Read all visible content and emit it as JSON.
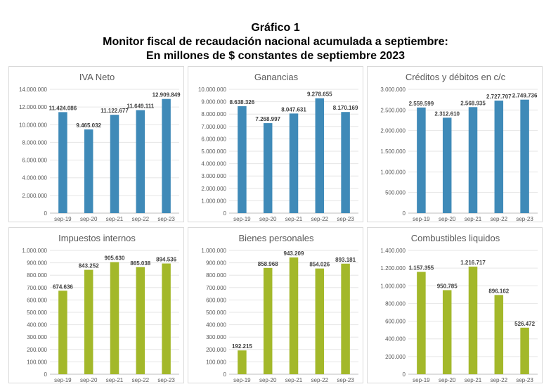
{
  "heading": {
    "line1": "Gráfico 1",
    "line2": "Monitor fiscal de recaudación nacional acumulada a septiembre:",
    "line3": "En millones de $ constantes de septiembre 2023"
  },
  "colors": {
    "blue": "#3f8ab8",
    "green": "#a3b82a"
  },
  "chart_data": [
    {
      "type": "bar",
      "title": "IVA Neto",
      "categories": [
        "sep-19",
        "sep-20",
        "sep-21",
        "sep-22",
        "sep-23"
      ],
      "values": [
        11424086,
        9465032,
        11122677,
        11649111,
        12909849
      ],
      "value_labels": [
        "11.424.086",
        "9.465.032",
        "11.122.677",
        "11.649.111",
        "12.909.849"
      ],
      "ylim": [
        0,
        14000000
      ],
      "yticks": [
        0,
        2000000,
        4000000,
        6000000,
        8000000,
        10000000,
        12000000,
        14000000
      ],
      "ytick_labels": [
        "0",
        "2.000.000",
        "4.000.000",
        "6.000.000",
        "8.000.000",
        "10.000.000",
        "12.000.000",
        "14.000.000"
      ],
      "color": "#3f8ab8",
      "grid": true
    },
    {
      "type": "bar",
      "title": "Ganancias",
      "categories": [
        "sep-19",
        "sep-20",
        "sep-21",
        "sep-22",
        "sep-23"
      ],
      "values": [
        8638326,
        7268997,
        8047631,
        9278655,
        8170169
      ],
      "value_labels": [
        "8.638.326",
        "7.268.997",
        "8.047.631",
        "9.278.655",
        "8.170.169"
      ],
      "ylim": [
        0,
        10000000
      ],
      "yticks": [
        0,
        1000000,
        2000000,
        3000000,
        4000000,
        5000000,
        6000000,
        7000000,
        8000000,
        9000000,
        10000000
      ],
      "ytick_labels": [
        "0",
        "1.000.000",
        "2.000.000",
        "3.000.000",
        "4.000.000",
        "5.000.000",
        "6.000.000",
        "7.000.000",
        "8.000.000",
        "9.000.000",
        "10.000.000"
      ],
      "color": "#3f8ab8",
      "grid": true
    },
    {
      "type": "bar",
      "title": "Créditos y débitos en c/c",
      "categories": [
        "sep-19",
        "sep-20",
        "sep-21",
        "sep-22",
        "sep-23"
      ],
      "values": [
        2559599,
        2312610,
        2568935,
        2727707,
        2749736
      ],
      "value_labels": [
        "2.559.599",
        "2.312.610",
        "2.568.935",
        "2.727.707",
        "2.749.736"
      ],
      "ylim": [
        0,
        3000000
      ],
      "yticks": [
        0,
        500000,
        1000000,
        1500000,
        2000000,
        2500000,
        3000000
      ],
      "ytick_labels": [
        "0",
        "500.000",
        "1.000.000",
        "1.500.000",
        "2.000.000",
        "2.500.000",
        "3.000.000"
      ],
      "color": "#3f8ab8",
      "grid": true
    },
    {
      "type": "bar",
      "title": "Impuestos internos",
      "categories": [
        "sep-19",
        "sep-20",
        "sep-21",
        "sep-22",
        "sep-23"
      ],
      "values": [
        674636,
        843252,
        905630,
        865038,
        894536
      ],
      "value_labels": [
        "674.636",
        "843.252",
        "905.630",
        "865.038",
        "894.536"
      ],
      "ylim": [
        0,
        1000000
      ],
      "yticks": [
        0,
        100000,
        200000,
        300000,
        400000,
        500000,
        600000,
        700000,
        800000,
        900000,
        1000000
      ],
      "ytick_labels": [
        "0",
        "100.000",
        "200.000",
        "300.000",
        "400.000",
        "500.000",
        "600.000",
        "700.000",
        "800.000",
        "900.000",
        "1.000.000"
      ],
      "color": "#a3b82a",
      "grid": true
    },
    {
      "type": "bar",
      "title": "Bienes personales",
      "categories": [
        "sep-19",
        "sep-20",
        "sep-21",
        "sep-22",
        "sep-23"
      ],
      "values": [
        192215,
        858968,
        943209,
        854026,
        893181
      ],
      "value_labels": [
        "192.215",
        "858.968",
        "943.209",
        "854.026",
        "893.181"
      ],
      "ylim": [
        0,
        1000000
      ],
      "yticks": [
        0,
        100000,
        200000,
        300000,
        400000,
        500000,
        600000,
        700000,
        800000,
        900000,
        1000000
      ],
      "ytick_labels": [
        "0",
        "100.000",
        "200.000",
        "300.000",
        "400.000",
        "500.000",
        "600.000",
        "700.000",
        "800.000",
        "900.000",
        "1.000.000"
      ],
      "color": "#a3b82a",
      "grid": true
    },
    {
      "type": "bar",
      "title": "Combustibles liquidos",
      "categories": [
        "sep-19",
        "sep-20",
        "sep-21",
        "sep-22",
        "sep-23"
      ],
      "values": [
        1157355,
        950785,
        1216717,
        896162,
        526472
      ],
      "value_labels": [
        "1.157.355",
        "950.785",
        "1.216.717",
        "896.162",
        "526.472"
      ],
      "ylim": [
        0,
        1400000
      ],
      "yticks": [
        0,
        200000,
        400000,
        600000,
        800000,
        1000000,
        1200000,
        1400000
      ],
      "ytick_labels": [
        "0",
        "200.000",
        "400.000",
        "600.000",
        "800.000",
        "1.000.000",
        "1.200.000",
        "1.400.000"
      ],
      "color": "#a3b82a",
      "grid": true
    }
  ]
}
